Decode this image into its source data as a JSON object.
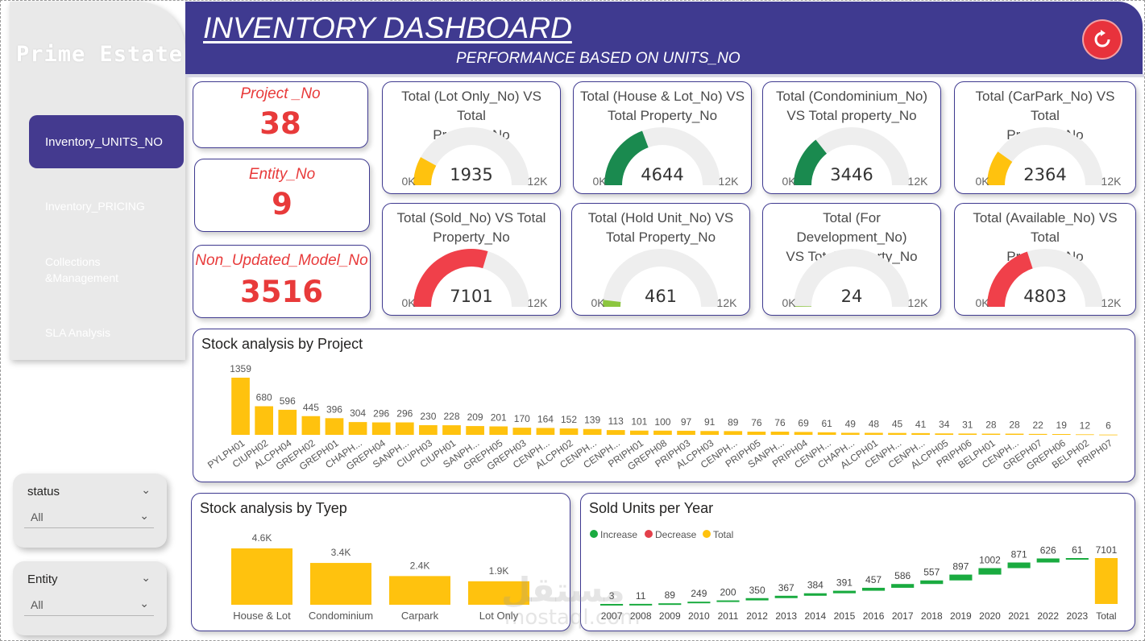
{
  "brand": "Prime Estate",
  "nav": [
    {
      "label": "Inventory_UNITS_NO",
      "active": true
    },
    {
      "label": "Inventory_PRICING"
    },
    {
      "label_line1": "Collections",
      "label_line2": "&Management"
    },
    {
      "label": "SLA Analysis"
    }
  ],
  "header": {
    "title": "INVENTORY DASHBOARD",
    "subtitle": "PERFORMANCE BASED ON UNITS_NO"
  },
  "colors": {
    "header": "#3f3a90",
    "accent_red": "#e83a3a",
    "bar_yellow": "#ffc20e",
    "gauge_green": "#1a8a4f",
    "gauge_red": "#f0404a",
    "gauge_lime": "#8cc63f",
    "gauge_track": "#eeeeee",
    "increase": "#1aab40",
    "decrease": "#e3404a"
  },
  "kpis": [
    {
      "label": "Project _No",
      "value": "38"
    },
    {
      "label": "Entity_No",
      "value": "9"
    },
    {
      "label": "Non_Updated_Model_No",
      "value": "3516"
    }
  ],
  "gauges": [
    {
      "title_line1": "Total (Lot Only_No) VS Total",
      "title_line2": "Property_No",
      "value": 1935,
      "value_label": "1935",
      "color": "#ffc20e"
    },
    {
      "title_line1": "Total (House & Lot_No) VS",
      "title_line2": "Total Property_No",
      "value": 4644,
      "value_label": "4644",
      "color": "#1a8a4f"
    },
    {
      "title_line1": "Total (Condominium_No)",
      "title_line2": "VS Total property_No",
      "value": 3446,
      "value_label": "3446",
      "color": "#1a8a4f"
    },
    {
      "title_line1": "Total (CarPark_No) VS Total",
      "title_line2": "Property_No",
      "value": 2364,
      "value_label": "2364",
      "color": "#ffc20e"
    },
    {
      "title_line1": "Total (Sold_No) VS Total",
      "title_line2": "Property_No",
      "value": 7101,
      "value_label": "7101",
      "color": "#f0404a"
    },
    {
      "title_line1": "Total (Hold Unit_No) VS",
      "title_line2": "Total Property_No",
      "value": 461,
      "value_label": "461",
      "color": "#8cc63f"
    },
    {
      "title_line1": "Total (For Development_No)",
      "title_line2": "VS Total Property_No",
      "value": 24,
      "value_label": "24",
      "color": "#8cc63f"
    },
    {
      "title_line1": "Total (Available_No) VS Total",
      "title_line2": "Property_No",
      "value": 4803,
      "value_label": "4803",
      "color": "#f0404a"
    }
  ],
  "gauge_axis": {
    "min_label": "0K",
    "max_label": "12K",
    "max": 12000
  },
  "chart_data": [
    {
      "type": "bar",
      "title": "Stock analysis by Project",
      "categories": [
        "PYLPH01",
        "CIUPH02",
        "ALCPH04",
        "GREPH02",
        "GREPH01",
        "CHAPH...",
        "GREPH04",
        "SANPH...",
        "CIUPH03",
        "CIUPH01",
        "SANPH...",
        "GREPH05",
        "GREPH03",
        "CENPH...",
        "ALCPH02",
        "CENPH...",
        "CENPH...",
        "PRIPH01",
        "GREPH08",
        "PRIPH03",
        "ALCPH03",
        "CENPH...",
        "PRIPH05",
        "SANPH...",
        "PRIPH04",
        "CENPH...",
        "CHAPH...",
        "ALCPH01",
        "CENPH...",
        "CENPH...",
        "ALCPH05",
        "PRIPH06",
        "BELPH01",
        "CENPH...",
        "GREPH07",
        "GREPH06",
        "BELPH02",
        "PRIPH07"
      ],
      "values": [
        1359,
        680,
        596,
        445,
        396,
        304,
        296,
        296,
        230,
        228,
        209,
        201,
        170,
        164,
        152,
        139,
        113,
        101,
        100,
        97,
        91,
        89,
        76,
        76,
        69,
        61,
        49,
        48,
        45,
        41,
        34,
        31,
        28,
        28,
        22,
        19,
        12,
        6
      ],
      "labels": [
        "1359",
        "680",
        "596",
        "445",
        "396",
        "304",
        "296",
        "296",
        "230",
        "228",
        "209",
        "201",
        "170",
        "164",
        "152",
        "139",
        "113",
        "101",
        "100",
        "97",
        "91",
        "89",
        "76",
        "76",
        "69",
        "61",
        "49",
        "48",
        "45",
        "41",
        "34",
        "31",
        "28",
        "28",
        "22",
        "19",
        "12",
        "6"
      ]
    },
    {
      "type": "bar",
      "title": "Stock analysis by Tyep",
      "categories": [
        "House & Lot",
        "Condominium",
        "Carpark",
        "Lot Only"
      ],
      "values": [
        4644,
        3446,
        2364,
        1935
      ],
      "labels": [
        "4.6K",
        "3.4K",
        "2.4K",
        "1.9K"
      ]
    },
    {
      "type": "waterfall",
      "title": "Sold Units per Year",
      "legend": [
        "Increase",
        "Decrease",
        "Total"
      ],
      "categories": [
        "2007",
        "2008",
        "2009",
        "2010",
        "2011",
        "2012",
        "2013",
        "2014",
        "2015",
        "2016",
        "2017",
        "2018",
        "2019",
        "2020",
        "2021",
        "2022",
        "2023",
        "Total"
      ],
      "values": [
        3,
        11,
        89,
        249,
        200,
        350,
        367,
        384,
        391,
        457,
        586,
        557,
        897,
        1002,
        871,
        626,
        61,
        7101
      ],
      "labels": [
        "3",
        "11",
        "89",
        "249",
        "200",
        "350",
        "367",
        "384",
        "391",
        "457",
        "586",
        "557",
        "897",
        "1002",
        "871",
        "626",
        "61",
        "7101"
      ]
    }
  ],
  "slicers": [
    {
      "label": "status",
      "value": "All"
    },
    {
      "label": "Entity",
      "value": "All"
    }
  ],
  "watermark": {
    "line1": "مستقل",
    "line2": "mostaql.com"
  }
}
